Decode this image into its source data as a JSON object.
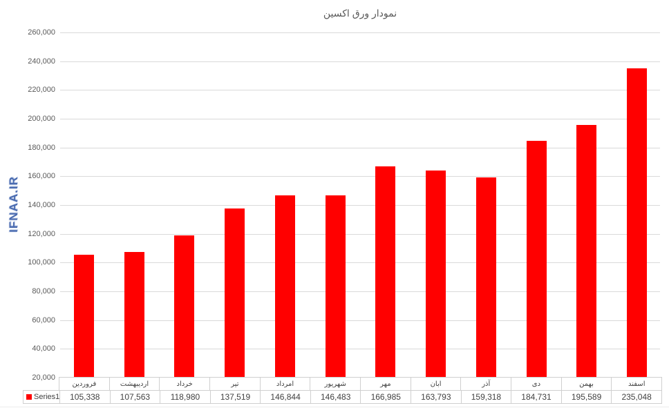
{
  "watermark": {
    "text": "IFNAA.IR",
    "color": "#4a6bb0"
  },
  "legend": {
    "label": "Series1",
    "marker_color": "#ff0000"
  },
  "chart_data": {
    "type": "bar",
    "title": "نمودار ورق اکسین",
    "categories": [
      "فروردین",
      "اردیبهشت",
      "خرداد",
      "تیر",
      "امرداد",
      "شهریور",
      "مهر",
      "ابان",
      "آذر",
      "دی",
      "بهمن",
      "اسفند"
    ],
    "series": [
      {
        "name": "Series1",
        "values": [
          105338,
          107563,
          118980,
          137519,
          146844,
          146483,
          166985,
          163793,
          159318,
          184731,
          195589,
          235048
        ]
      }
    ],
    "bar_color": "#ff0000",
    "xlabel": "",
    "ylabel": "",
    "ylim": [
      20000,
      260000
    ],
    "ytick_step": 20000,
    "grid": true,
    "gridline_color": "#d9d9d9",
    "text_color": "#595959",
    "legend_position": "bottom-left-table",
    "data_table_shown": true
  }
}
